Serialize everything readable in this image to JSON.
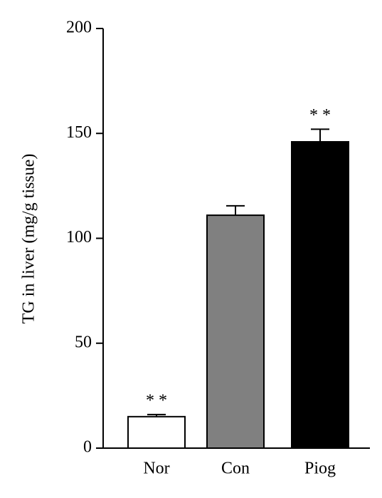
{
  "chart_data": {
    "type": "bar",
    "y_label": "TG in liver (mg/g tissue)",
    "categories": [
      "Nor",
      "Con",
      "Piog"
    ],
    "values": [
      15,
      111,
      146
    ],
    "errors": [
      1,
      4.5,
      6
    ],
    "colors": [
      "#ffffff",
      "#808080",
      "#000000"
    ],
    "annotations": [
      {
        "text": "* *",
        "category": "Nor"
      },
      {
        "text": "* *",
        "category": "Piog"
      }
    ],
    "ylim": [
      0,
      200
    ],
    "yticks": [
      0,
      50,
      100,
      150,
      200
    ]
  }
}
